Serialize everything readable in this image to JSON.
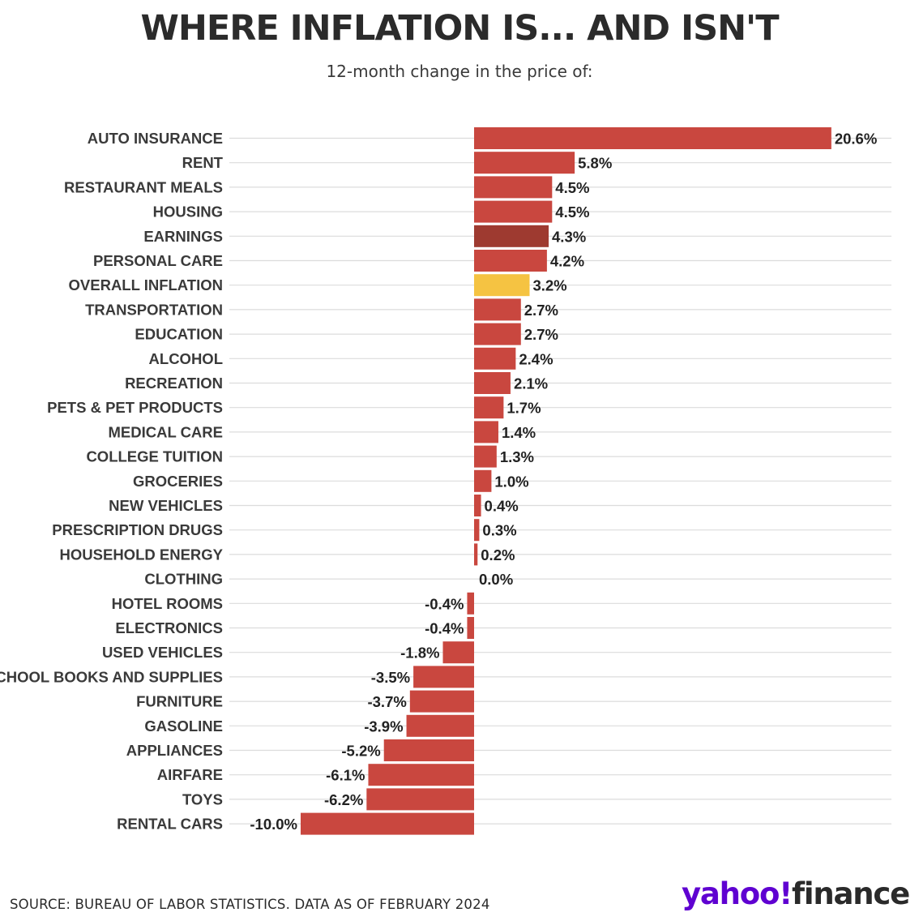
{
  "header": {
    "title": "WHERE INFLATION IS... AND ISN'T",
    "subtitle": "12-month change in the price of:"
  },
  "footer": {
    "source": "SOURCE: BUREAU OF LABOR STATISTICS. DATA AS OF FEBRUARY 2024",
    "logo_yahoo": "yahoo!",
    "logo_finance": "finance"
  },
  "colors": {
    "bar": "#c9473f",
    "earnings": "#9e3a30",
    "overall": "#f5c342",
    "grid": "#dcdcdc",
    "text": "#2a2a2a"
  },
  "chart_data": {
    "type": "bar",
    "orientation": "horizontal",
    "title": "WHERE INFLATION IS... AND ISN'T",
    "subtitle": "12-month change in the price of:",
    "xlim": [
      -10,
      20.6
    ],
    "grid": true,
    "categories": [
      "AUTO INSURANCE",
      "RENT",
      "RESTAURANT MEALS",
      "HOUSING",
      "EARNINGS",
      "PERSONAL CARE",
      "OVERALL INFLATION",
      "TRANSPORTATION",
      "EDUCATION",
      "ALCOHOL",
      "RECREATION",
      "PETS & PET PRODUCTS",
      "MEDICAL CARE",
      "COLLEGE TUITION",
      "GROCERIES",
      "NEW VEHICLES",
      "PRESCRIPTION DRUGS",
      "HOUSEHOLD ENERGY",
      "CLOTHING",
      "HOTEL ROOMS",
      "ELECTRONICS",
      "USED VEHICLES",
      "SCHOOL BOOKS AND SUPPLIES",
      "FURNITURE",
      "GASOLINE",
      "APPLIANCES",
      "AIRFARE",
      "TOYS",
      "RENTAL CARS"
    ],
    "values": [
      20.6,
      5.8,
      4.5,
      4.5,
      4.3,
      4.2,
      3.2,
      2.7,
      2.7,
      2.4,
      2.1,
      1.7,
      1.4,
      1.3,
      1.0,
      0.4,
      0.3,
      0.2,
      0.0,
      -0.4,
      -0.4,
      -1.8,
      -3.5,
      -3.7,
      -3.9,
      -5.2,
      -6.1,
      -6.2,
      -10.0
    ],
    "labels": [
      "20.6%",
      "5.8%",
      "4.5%",
      "4.5%",
      "4.3%",
      "4.2%",
      "3.2%",
      "2.7%",
      "2.7%",
      "2.4%",
      "2.1%",
      "1.7%",
      "1.4%",
      "1.3%",
      "1.0%",
      "0.4%",
      "0.3%",
      "0.2%",
      "0.0%",
      "-0.4%",
      "-0.4%",
      "-1.8%",
      "-3.5%",
      "-3.7%",
      "-3.9%",
      "-5.2%",
      "-6.1%",
      "-6.2%",
      "-10.0%"
    ],
    "highlight": {
      "EARNINGS": "earnings",
      "OVERALL INFLATION": "overall"
    }
  }
}
